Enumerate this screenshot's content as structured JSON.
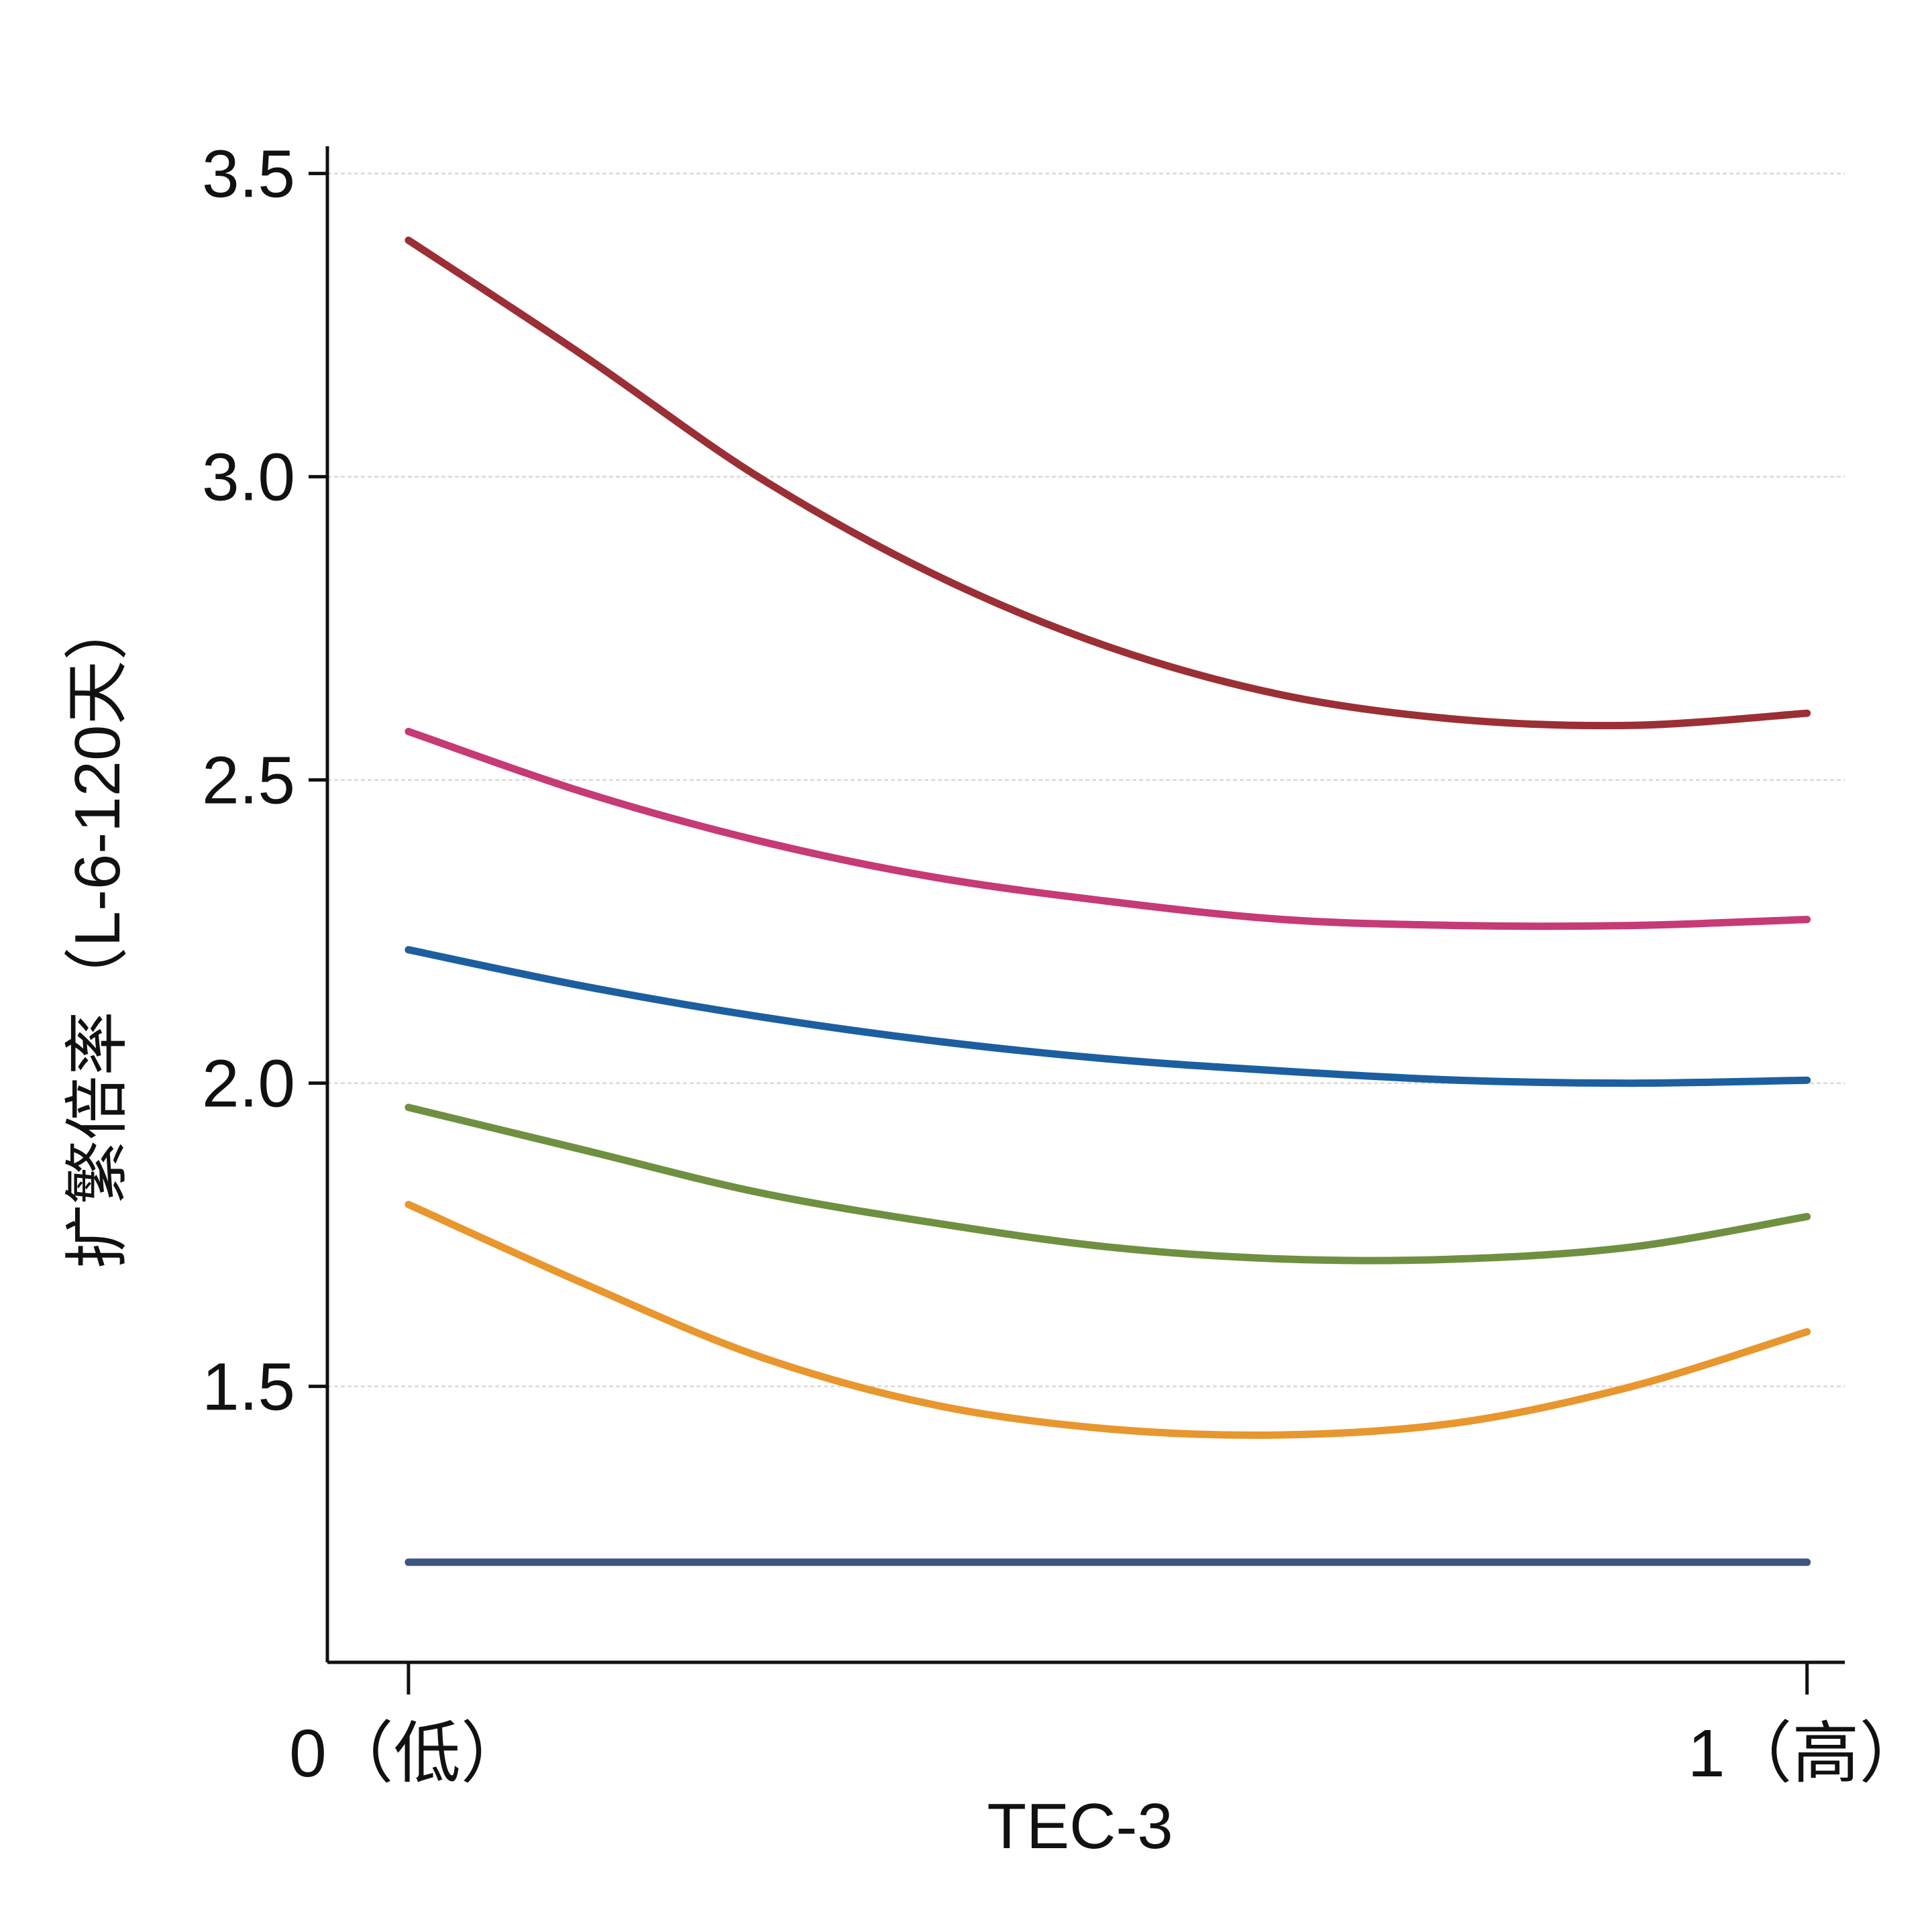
{
  "chart_data": {
    "type": "line",
    "title": "",
    "xlabel": "TEC-3",
    "ylabel": "扩繁倍率（L-6-120天）",
    "x_ticks": [
      {
        "value": 0,
        "label": "0（低）"
      },
      {
        "value": 1,
        "label": "1（高）"
      }
    ],
    "y_ticks": [
      1.5,
      2.0,
      2.5,
      3.0,
      3.5
    ],
    "y_tick_labels": [
      "1.5",
      "2.0",
      "2.5",
      "3.0",
      "3.5"
    ],
    "xlim": [
      -0.058,
      1.027
    ],
    "ylim": [
      1.045,
      3.545
    ],
    "grid": "horizontal-dashed",
    "series": [
      {
        "color": "#9b2f36",
        "x": [
          0,
          0.125,
          0.25,
          0.375,
          0.5,
          0.625,
          0.75,
          0.875,
          1.0
        ],
        "y": [
          3.39,
          3.2,
          3.0,
          2.84,
          2.72,
          2.64,
          2.6,
          2.59,
          2.61
        ]
      },
      {
        "color": "#c63a76",
        "x": [
          0,
          0.125,
          0.25,
          0.375,
          0.5,
          0.625,
          0.75,
          0.875,
          1.0
        ],
        "y": [
          2.58,
          2.48,
          2.4,
          2.34,
          2.3,
          2.27,
          2.26,
          2.26,
          2.27
        ]
      },
      {
        "color": "#1c5fa0",
        "x": [
          0,
          0.125,
          0.25,
          0.375,
          0.5,
          0.625,
          0.75,
          0.875,
          1.0
        ],
        "y": [
          2.22,
          2.16,
          2.11,
          2.07,
          2.04,
          2.02,
          2.005,
          2.0,
          2.005
        ]
      },
      {
        "color": "#6f9040",
        "x": [
          0,
          0.125,
          0.25,
          0.375,
          0.5,
          0.625,
          0.75,
          0.875,
          1.0
        ],
        "y": [
          1.96,
          1.89,
          1.82,
          1.77,
          1.73,
          1.71,
          1.71,
          1.73,
          1.78
        ]
      },
      {
        "color": "#e8962e",
        "x": [
          0,
          0.125,
          0.25,
          0.375,
          0.5,
          0.625,
          0.75,
          0.875,
          1.0
        ],
        "y": [
          1.8,
          1.67,
          1.55,
          1.47,
          1.43,
          1.42,
          1.44,
          1.5,
          1.59
        ]
      },
      {
        "color": "#3e5580",
        "x": [
          0,
          0.125,
          0.25,
          0.375,
          0.5,
          0.625,
          0.75,
          0.875,
          1.0
        ],
        "y": [
          1.21,
          1.21,
          1.21,
          1.21,
          1.21,
          1.21,
          1.21,
          1.21,
          1.21
        ]
      }
    ]
  }
}
